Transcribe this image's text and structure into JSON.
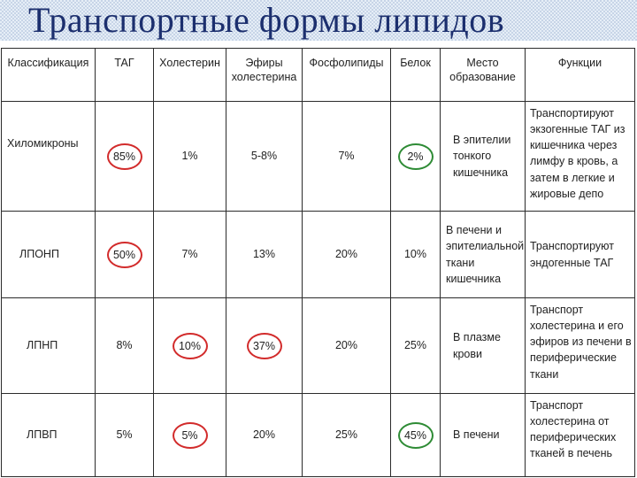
{
  "title": "Транспортные формы липидов",
  "colors": {
    "red_circle": "#d22b2b",
    "green_circle": "#2e8b35",
    "title": "#1c2f6e"
  },
  "headers": {
    "classification": "Классификация",
    "tag": "ТАГ",
    "cholesterol": "Холестерин",
    "esters": "Эфиры холестерина",
    "phospholipids": "Фосфолипиды",
    "protein": "Белок",
    "place": "Место образование",
    "functions": "Функции"
  },
  "rows": [
    {
      "name": "Хиломикроны",
      "tag": "85%",
      "chol": "1%",
      "esters": "5-8%",
      "phos": "7%",
      "protein": "2%",
      "place": "В эпителии тонкого кишечника",
      "func": "Транспортируют экзогенные ТАГ из кишечника через лимфу в кровь, а затем в легкие и жировые депо",
      "circled": {
        "tag": "red",
        "protein": "green"
      }
    },
    {
      "name": "ЛПОНП",
      "tag": "50%",
      "chol": "7%",
      "esters": "13%",
      "phos": "20%",
      "protein": "10%",
      "place": "В печени и эпителиальной ткани кишечника",
      "func": "Транспортируют эндогенные ТАГ",
      "circled": {
        "tag": "red"
      }
    },
    {
      "name": "ЛПНП",
      "tag": "8%",
      "chol": "10%",
      "esters": "37%",
      "phos": "20%",
      "protein": "25%",
      "place": "В плазме крови",
      "func": "Транспорт холестерина и его эфиров из печени в периферические ткани",
      "circled": {
        "chol": "red",
        "esters": "red"
      }
    },
    {
      "name": "ЛПВП",
      "tag": "5%",
      "chol": "5%",
      "esters": "20%",
      "phos": "25%",
      "protein": "45%",
      "place": "В печени",
      "func": "Транспорт холестерина от периферических тканей в печень",
      "circled": {
        "chol": "red",
        "protein": "green"
      }
    }
  ]
}
